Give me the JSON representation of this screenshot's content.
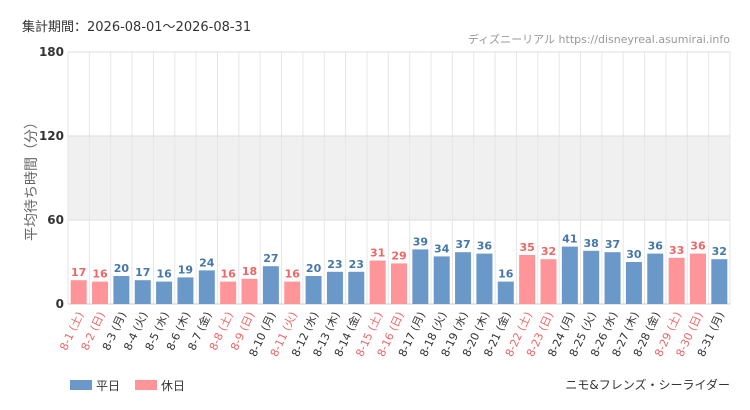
{
  "header": {
    "period_label": "集計期間：2026-08-01～2026-08-31",
    "source": "ディズニーリアル https://disneyreal.asumirai.info"
  },
  "footer": {
    "attraction": "ニモ&フレンズ・シーライダー"
  },
  "colors": {
    "weekday": "#6a98c8",
    "holiday": "#ff9598",
    "weekday_text": "#4477aa",
    "holiday_text": "#ee6666",
    "band": "#f0f0f0",
    "grid": "#e6e6e6"
  },
  "chart_data": {
    "type": "bar",
    "ylabel": "平均待ち時間（分）",
    "ylim": [
      0,
      180
    ],
    "yticks": [
      0,
      60,
      120,
      180
    ],
    "grid": true,
    "legend_position": "bottom-left",
    "legend": [
      {
        "label": "平日",
        "kind": "weekday"
      },
      {
        "label": "休日",
        "kind": "holiday"
      }
    ],
    "categories": [
      "8-1 (土)",
      "8-2 (日)",
      "8-3 (月)",
      "8-4 (火)",
      "8-5 (水)",
      "8-6 (木)",
      "8-7 (金)",
      "8-8 (土)",
      "8-9 (日)",
      "8-10 (月)",
      "8-11 (火)",
      "8-12 (水)",
      "8-13 (木)",
      "8-14 (金)",
      "8-15 (土)",
      "8-16 (日)",
      "8-17 (月)",
      "8-18 (火)",
      "8-19 (水)",
      "8-20 (木)",
      "8-21 (金)",
      "8-22 (土)",
      "8-23 (日)",
      "8-24 (月)",
      "8-25 (火)",
      "8-26 (水)",
      "8-27 (木)",
      "8-28 (金)",
      "8-29 (土)",
      "8-30 (日)",
      "8-31 (月)"
    ],
    "values": [
      17,
      16,
      20,
      17,
      16,
      19,
      24,
      16,
      18,
      27,
      16,
      20,
      23,
      23,
      31,
      29,
      39,
      34,
      37,
      36,
      16,
      35,
      32,
      41,
      38,
      37,
      30,
      36,
      33,
      36,
      32
    ],
    "day_type": [
      "holiday",
      "holiday",
      "weekday",
      "weekday",
      "weekday",
      "weekday",
      "weekday",
      "holiday",
      "holiday",
      "weekday",
      "holiday",
      "weekday",
      "weekday",
      "weekday",
      "holiday",
      "holiday",
      "weekday",
      "weekday",
      "weekday",
      "weekday",
      "weekday",
      "holiday",
      "holiday",
      "weekday",
      "weekday",
      "weekday",
      "weekday",
      "weekday",
      "holiday",
      "holiday",
      "weekday"
    ]
  }
}
